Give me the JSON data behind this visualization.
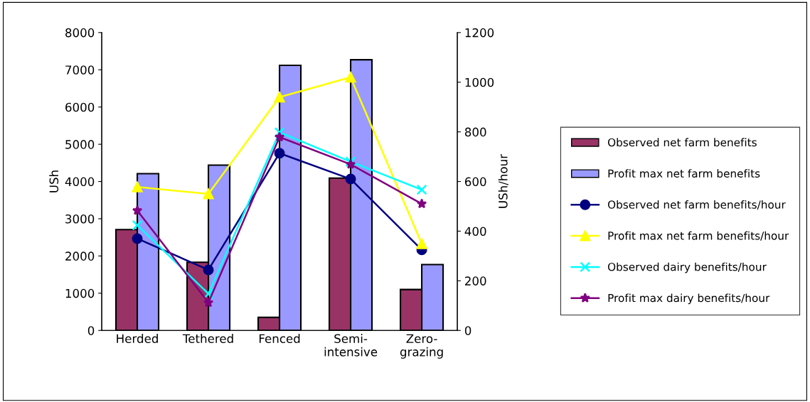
{
  "chart_data": {
    "type": "bar",
    "ylabel": "USh",
    "y2label": "USh/hour",
    "categories": [
      "Herded",
      "Tethered",
      "Fenced",
      "Semi-\nintensive",
      "Zero-\ngrazing"
    ],
    "series": [
      {
        "name": "Observed net farm benefits",
        "color": "#993366",
        "values": [
          2710,
          1830,
          350,
          4090,
          1100
        ]
      },
      {
        "name": "Profit max net farm benefits",
        "color": "#9999ff",
        "values": [
          4210,
          4440,
          7120,
          7270,
          1770
        ]
      },
      {
        "name": "Observed net farm benefits/hour",
        "type": "line",
        "axis": "y2",
        "marker": "circle",
        "color": "#000080",
        "values": [
          370,
          244,
          714,
          610,
          325
        ]
      },
      {
        "name": "Profit max net farm benefits/hour",
        "type": "line",
        "axis": "y2",
        "marker": "triangle",
        "color": "#ffff00",
        "values": [
          578,
          550,
          940,
          1020,
          349
        ]
      },
      {
        "name": "Observed dairy benefits/hour",
        "type": "line",
        "axis": "y2",
        "marker": "cross",
        "color": "#00ffff",
        "values": [
          424,
          148,
          798,
          680,
          567
        ]
      },
      {
        "name": "Profit max dairy benefits/hour",
        "type": "line",
        "axis": "y2",
        "marker": "star",
        "color": "#800080",
        "values": [
          483,
          112,
          779,
          669,
          510
        ]
      }
    ],
    "ylim": [
      0,
      8000
    ],
    "yticks": [
      0,
      1000,
      2000,
      3000,
      4000,
      5000,
      6000,
      7000,
      8000
    ],
    "y2lim": [
      0,
      1200
    ],
    "y2ticks": [
      0,
      200,
      400,
      600,
      800,
      1000,
      1200
    ],
    "grid": false,
    "legend": "right"
  }
}
